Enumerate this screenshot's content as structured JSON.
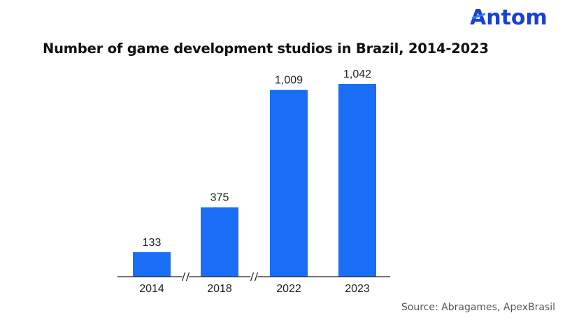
{
  "brand": {
    "name": "Antom",
    "color": "#1a3fd6",
    "accent": "#2f80ff"
  },
  "source": "Source: Abragames, ApexBrasil",
  "chart_data": {
    "type": "bar",
    "title": "Number of game development studios in Brazil, 2014-2023",
    "xlabel": "",
    "ylabel": "",
    "categories": [
      "2014",
      "2018",
      "2022",
      "2023"
    ],
    "values": [
      133,
      375,
      1009,
      1042
    ],
    "value_labels": [
      "133",
      "375",
      "1,009",
      "1,042"
    ],
    "ylim": [
      0,
      1042
    ],
    "grid": false,
    "axis_breaks_after": [
      "2014",
      "2018"
    ],
    "bar_color": "#1a6ef5"
  }
}
